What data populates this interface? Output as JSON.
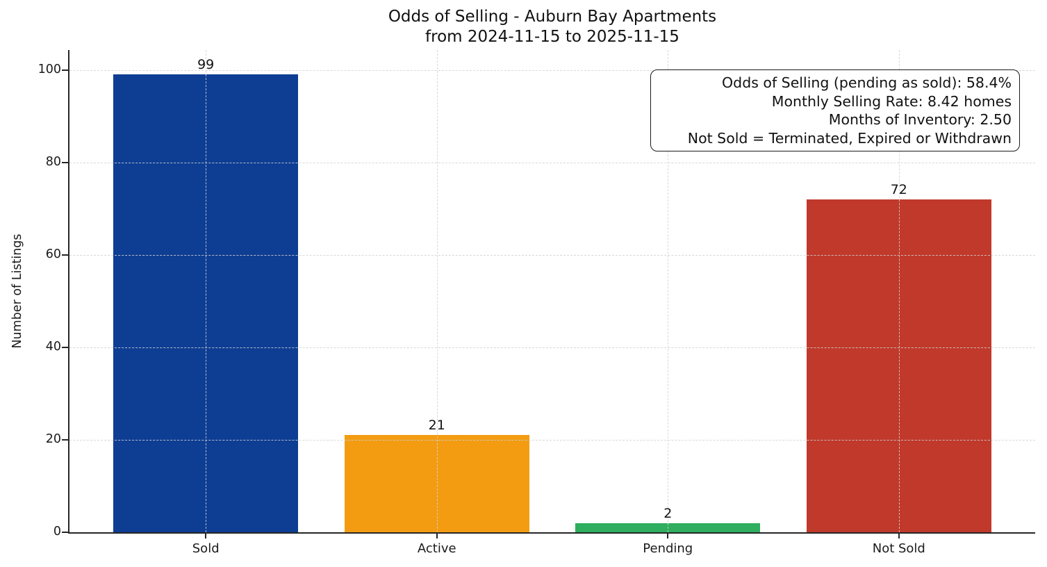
{
  "chart_data": {
    "type": "bar",
    "title": "Odds of Selling - Auburn Bay Apartments\nfrom 2024-11-15 to 2025-11-15",
    "title_line1": "Odds of Selling - Auburn Bay Apartments",
    "title_line2": "from 2024-11-15 to 2025-11-15",
    "xlabel": "",
    "ylabel": "Number of Listings",
    "categories": [
      "Sold",
      "Active",
      "Pending",
      "Not Sold"
    ],
    "values": [
      99,
      21,
      2,
      72
    ],
    "value_labels": [
      "99",
      "21",
      "2",
      "72"
    ],
    "bar_colors": [
      "#0e3e93",
      "#f39c12",
      "#2eae5e",
      "#c0392b"
    ],
    "yticks": [
      0,
      20,
      40,
      60,
      80,
      100
    ],
    "ylim": [
      0,
      104.3
    ],
    "xlim": [
      -0.59,
      3.59
    ],
    "bar_width_units": 0.8,
    "grid": "dashed, horizontal and vertical, drawn above bars",
    "legend_position": "none",
    "annotation": {
      "lines": [
        "Odds of Selling (pending as sold): 58.4%",
        "Monthly Selling Rate: 8.42 homes",
        "Months of Inventory: 2.50",
        "Not Sold = Terminated, Expired or Withdrawn"
      ]
    },
    "stats": {
      "odds_of_selling_pending_as_sold_pct": "58.4%",
      "monthly_selling_rate_homes": "8.42",
      "months_of_inventory": "2.50",
      "not_sold_definition": "Terminated, Expired or Withdrawn",
      "date_from": "2024-11-15",
      "date_to": "2025-11-15"
    }
  }
}
